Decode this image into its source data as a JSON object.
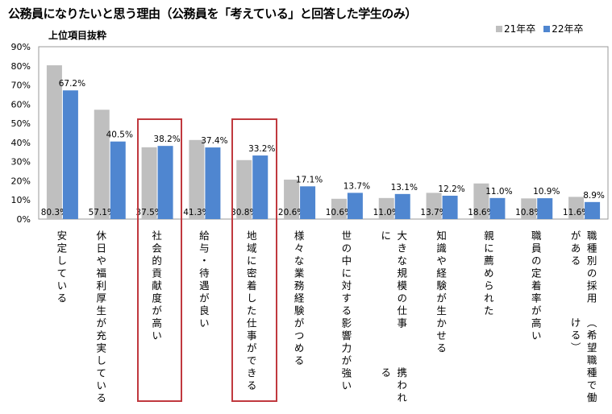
{
  "title": "公務員になりたいと思う理由（公務員を「考えている」と回答した学生のみ）",
  "subtitle": "上位項目抜粋",
  "chart_data": {
    "type": "bar",
    "title": "公務員になりたいと思う理由（公務員を「考えている」と回答した学生のみ）",
    "subtitle": "上位項目抜粋",
    "xlabel": "",
    "ylabel": "",
    "ylim": [
      0,
      90
    ],
    "yticks": [
      "0%",
      "10%",
      "20%",
      "30%",
      "40%",
      "50%",
      "60%",
      "70%",
      "80%",
      "90%"
    ],
    "legend_position": "top-right",
    "categories": [
      [
        "安定している"
      ],
      [
        "休日や福利厚生が",
        "充実している"
      ],
      [
        "社会的貢献度が高い"
      ],
      [
        "給与・待遇が良い"
      ],
      [
        "地域に密着した仕事ができる"
      ],
      [
        "様々な業務経験がつめる"
      ],
      [
        "世の中に対する影響力が強い"
      ],
      [
        "大きな規模の仕事に",
        "携われる"
      ],
      [
        "知識や経験が生かせる"
      ],
      [
        "親に薦められた"
      ],
      [
        "職員の定着率が高い"
      ],
      [
        "職種別の採用がある",
        "（希望職種で働ける）"
      ]
    ],
    "highlighted": [
      2,
      4
    ],
    "series": [
      {
        "name": "21年卒",
        "color": "#bfbfbf",
        "values": [
          80.3,
          57.1,
          37.5,
          41.3,
          30.8,
          20.6,
          10.6,
          11.0,
          13.7,
          18.6,
          10.8,
          11.6
        ],
        "labels": [
          "80.3%",
          "57.1%",
          "37.5%",
          "41.3%",
          "30.8%",
          "20.6%",
          "10.6%",
          "11.0%",
          "13.7%",
          "18.6%",
          "10.8%",
          "11.6%"
        ]
      },
      {
        "name": "22年卒",
        "color": "#4f86d0",
        "values": [
          67.2,
          40.5,
          38.2,
          37.4,
          33.2,
          17.1,
          13.7,
          13.1,
          12.2,
          11.0,
          10.9,
          8.9
        ],
        "labels": [
          "67.2%",
          "40.5%",
          "38.2%",
          "37.4%",
          "33.2%",
          "17.1%",
          "13.7%",
          "13.1%",
          "12.2%",
          "11.0%",
          "10.9%",
          "8.9%"
        ]
      }
    ]
  }
}
